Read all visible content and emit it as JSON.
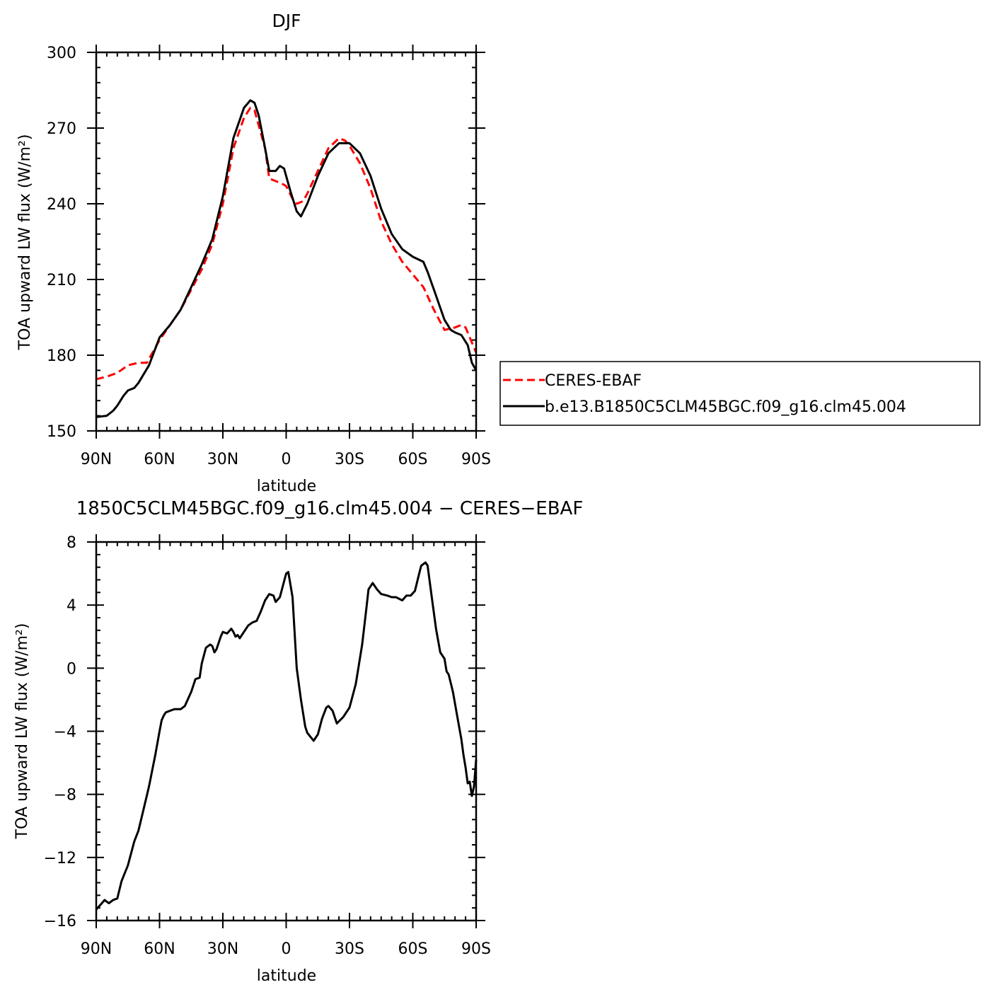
{
  "chart_data": [
    {
      "type": "line",
      "title": "DJF",
      "xlabel": "latitude",
      "ylabel": "TOA upward LW flux (W/m²)",
      "xlim": [
        90,
        -90
      ],
      "ylim": [
        150,
        300
      ],
      "xticks": [
        {
          "value": 90,
          "label": "90N"
        },
        {
          "value": 60,
          "label": "60N"
        },
        {
          "value": 30,
          "label": "30N"
        },
        {
          "value": 0,
          "label": "0"
        },
        {
          "value": -30,
          "label": "30S"
        },
        {
          "value": -60,
          "label": "60S"
        },
        {
          "value": -90,
          "label": "90S"
        }
      ],
      "yticks": [
        {
          "value": 150,
          "label": "150"
        },
        {
          "value": 180,
          "label": "180"
        },
        {
          "value": 210,
          "label": "210"
        },
        {
          "value": 240,
          "label": "240"
        },
        {
          "value": 270,
          "label": "270"
        },
        {
          "value": 300,
          "label": "300"
        }
      ],
      "legend": {
        "position": "right"
      },
      "series": [
        {
          "name": "CERES-EBAF",
          "color": "#ff0000",
          "dashed": true,
          "x": [
            90,
            85,
            80,
            75,
            70,
            66,
            60,
            55,
            50,
            45,
            40,
            35,
            30,
            27,
            25,
            20,
            17,
            15,
            13,
            10,
            8,
            5,
            2,
            0,
            -3,
            -5,
            -8,
            -10,
            -15,
            -20,
            -25,
            -28,
            -30,
            -35,
            -40,
            -45,
            -50,
            -55,
            -60,
            -65,
            -70,
            -75,
            -80,
            -83,
            -85,
            -90
          ],
          "y": [
            170.5,
            171.5,
            173,
            176,
            177,
            177,
            186,
            192,
            198,
            206,
            214,
            224,
            240,
            253,
            262,
            274,
            278,
            277,
            271,
            262,
            250,
            249,
            248,
            247,
            242,
            240,
            241,
            244,
            253,
            262,
            266,
            265,
            263,
            256,
            246,
            233,
            224,
            217,
            212,
            207,
            198,
            190,
            191,
            192,
            191,
            181
          ]
        },
        {
          "name": "b.e13.B1850C5CLM45BGC.f09_g16.clm45.004",
          "color": "#000000",
          "dashed": false,
          "x": [
            90,
            85,
            82,
            80,
            77,
            75,
            72,
            70,
            65,
            60,
            55,
            50,
            45,
            40,
            35,
            30,
            25,
            20,
            17,
            15,
            13,
            10,
            8,
            5,
            3,
            1,
            -2,
            -5,
            -7,
            -10,
            -15,
            -20,
            -25,
            -30,
            -35,
            -40,
            -45,
            -50,
            -55,
            -60,
            -65,
            -67,
            -70,
            -75,
            -78,
            -80,
            -83,
            -86,
            -88,
            -90
          ],
          "y": [
            155.5,
            156,
            158,
            160,
            164,
            166,
            167,
            169,
            176,
            187,
            192,
            198,
            207,
            216,
            226,
            243,
            266,
            278,
            281,
            280,
            275,
            262,
            253,
            253,
            255,
            254,
            245,
            237,
            235,
            240,
            251,
            260,
            264,
            264,
            260,
            251,
            238,
            228,
            222,
            219,
            217,
            213,
            206,
            194,
            190,
            189,
            188,
            184,
            177,
            174
          ]
        }
      ]
    },
    {
      "type": "line",
      "title": "1850C5CLM45BGC.f09_g16.clm45.004 − CERES−EBAF",
      "xlabel": "latitude",
      "ylabel": "TOA upward LW flux (W/m²)",
      "xlim": [
        90,
        -90
      ],
      "ylim": [
        -16,
        8
      ],
      "xticks": [
        {
          "value": 90,
          "label": "90N"
        },
        {
          "value": 60,
          "label": "60N"
        },
        {
          "value": 30,
          "label": "30N"
        },
        {
          "value": 0,
          "label": "0"
        },
        {
          "value": -30,
          "label": "30S"
        },
        {
          "value": -60,
          "label": "60S"
        },
        {
          "value": -90,
          "label": "90S"
        }
      ],
      "yticks": [
        {
          "value": -16,
          "label": "−16"
        },
        {
          "value": -12,
          "label": "−12"
        },
        {
          "value": -8,
          "label": "−8"
        },
        {
          "value": -4,
          "label": "−4"
        },
        {
          "value": 0,
          "label": "0"
        },
        {
          "value": 4,
          "label": "4"
        },
        {
          "value": 8,
          "label": "8"
        }
      ],
      "series": [
        {
          "name": "",
          "color": "#000000",
          "dashed": false,
          "x": [
            90,
            88,
            86,
            85,
            84,
            82,
            80,
            78,
            75,
            72,
            70,
            68,
            65,
            62,
            60,
            59,
            58,
            57,
            55,
            53,
            50,
            48,
            45,
            43,
            41,
            40,
            38,
            36,
            35,
            34,
            33,
            31,
            30,
            28,
            26,
            25,
            24,
            23,
            22,
            20,
            18,
            16,
            14,
            12,
            10,
            8,
            6,
            5,
            3,
            1,
            0,
            -1,
            -3,
            -5,
            -7,
            -9,
            -10,
            -13,
            -15,
            -17,
            -19,
            -20,
            -22,
            -24,
            -27,
            -30,
            -33,
            -36,
            -38,
            -39,
            -41,
            -43,
            -45,
            -48,
            -50,
            -52,
            -55,
            -57,
            -59,
            -61,
            -63,
            -64,
            -66,
            -67,
            -69,
            -71,
            -73,
            -75,
            -76,
            -77,
            -79,
            -81,
            -83,
            -84,
            -85,
            -86,
            -87,
            -88,
            -89,
            -90
          ],
          "y": [
            -15.3,
            -15.0,
            -14.7,
            -14.8,
            -14.9,
            -14.7,
            -14.6,
            -13.5,
            -12.5,
            -11.0,
            -10.3,
            -9.2,
            -7.5,
            -5.5,
            -4.0,
            -3.3,
            -3.0,
            -2.8,
            -2.7,
            -2.6,
            -2.6,
            -2.4,
            -1.5,
            -0.7,
            -0.6,
            0.3,
            1.3,
            1.5,
            1.4,
            1.0,
            1.2,
            2.0,
            2.3,
            2.2,
            2.5,
            2.3,
            2.0,
            2.1,
            1.9,
            2.3,
            2.7,
            2.9,
            3.0,
            3.6,
            4.3,
            4.7,
            4.6,
            4.2,
            4.5,
            5.5,
            6.0,
            6.1,
            4.5,
            0.0,
            -2.0,
            -3.7,
            -4.1,
            -4.6,
            -4.2,
            -3.2,
            -2.5,
            -2.4,
            -2.7,
            -3.5,
            -3.1,
            -2.5,
            -1.0,
            1.5,
            3.8,
            5.0,
            5.4,
            5.0,
            4.7,
            4.6,
            4.5,
            4.5,
            4.3,
            4.6,
            4.6,
            4.9,
            6.0,
            6.5,
            6.7,
            6.5,
            4.5,
            2.5,
            1.0,
            0.6,
            -0.2,
            -0.4,
            -1.5,
            -3.0,
            -4.5,
            -5.5,
            -6.3,
            -7.3,
            -7.2,
            -8.1,
            -7.5,
            -5.8
          ]
        }
      ]
    }
  ]
}
